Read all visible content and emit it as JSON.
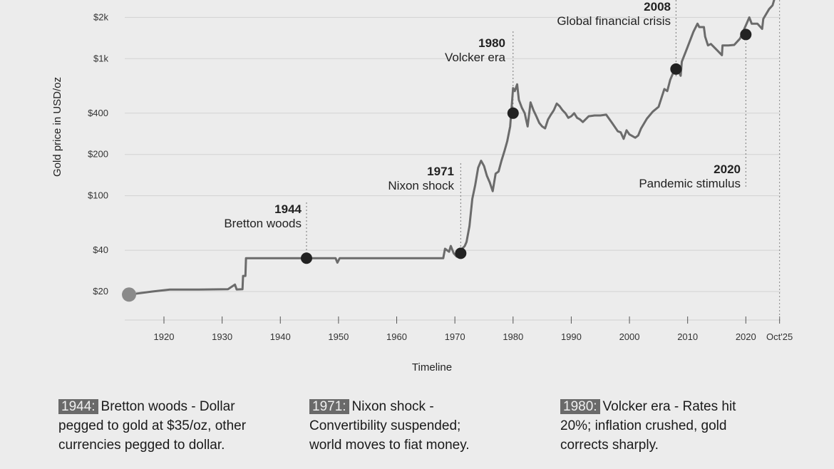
{
  "chart_data": {
    "type": "line",
    "title": "",
    "xlabel": "Timeline",
    "ylabel": "Gold price in USD/oz",
    "yscale": "log",
    "xlim": [
      1913,
      2026
    ],
    "ylim": [
      14,
      3000
    ],
    "grid": true,
    "xticks": [
      {
        "value": 1920,
        "label": "1920"
      },
      {
        "value": 1930,
        "label": "1930"
      },
      {
        "value": 1940,
        "label": "1940"
      },
      {
        "value": 1950,
        "label": "1950"
      },
      {
        "value": 1960,
        "label": "1960"
      },
      {
        "value": 1970,
        "label": "1970"
      },
      {
        "value": 1980,
        "label": "1980"
      },
      {
        "value": 1990,
        "label": "1990"
      },
      {
        "value": 2000,
        "label": "2000"
      },
      {
        "value": 2010,
        "label": "2010"
      },
      {
        "value": 2020,
        "label": "2020"
      },
      {
        "value": 2025.8,
        "label": "Oct'25"
      }
    ],
    "yticks": [
      {
        "value": 20,
        "label": "$20"
      },
      {
        "value": 40,
        "label": "$40"
      },
      {
        "value": 100,
        "label": "$100"
      },
      {
        "value": 200,
        "label": "$200"
      },
      {
        "value": 400,
        "label": "$400"
      },
      {
        "value": 1000,
        "label": "$1k"
      },
      {
        "value": 2000,
        "label": "$2k"
      }
    ],
    "series": [
      {
        "line_color": "#6b6b6b",
        "points": [
          [
            1914,
            19
          ],
          [
            1918,
            20
          ],
          [
            1921,
            20.67
          ],
          [
            1926,
            20.67
          ],
          [
            1931,
            20.8
          ],
          [
            1932.2,
            22.5
          ],
          [
            1932.5,
            20.7
          ],
          [
            1933.5,
            20.8
          ],
          [
            1933.6,
            26
          ],
          [
            1934,
            26
          ],
          [
            1934.1,
            35
          ],
          [
            1944.5,
            35
          ],
          [
            1949.5,
            35
          ],
          [
            1949.8,
            32.5
          ],
          [
            1950.2,
            35
          ],
          [
            1968,
            35
          ],
          [
            1968.3,
            41
          ],
          [
            1969,
            39
          ],
          [
            1969.3,
            43
          ],
          [
            1969.8,
            38
          ],
          [
            1970.3,
            36
          ],
          [
            1971,
            40
          ],
          [
            1971.7,
            43
          ],
          [
            1972,
            46
          ],
          [
            1972.5,
            60
          ],
          [
            1973,
            95
          ],
          [
            1973.5,
            120
          ],
          [
            1974,
            160
          ],
          [
            1974.5,
            180
          ],
          [
            1975,
            165
          ],
          [
            1975.5,
            140
          ],
          [
            1976,
            125
          ],
          [
            1976.5,
            108
          ],
          [
            1977,
            145
          ],
          [
            1977.5,
            150
          ],
          [
            1978,
            180
          ],
          [
            1978.5,
            210
          ],
          [
            1979,
            250
          ],
          [
            1979.5,
            320
          ],
          [
            1980,
            610
          ],
          [
            1980.3,
            580
          ],
          [
            1980.7,
            650
          ],
          [
            1981,
            500
          ],
          [
            1981.5,
            440
          ],
          [
            1982,
            400
          ],
          [
            1982.5,
            320
          ],
          [
            1983,
            480
          ],
          [
            1983.5,
            420
          ],
          [
            1984,
            380
          ],
          [
            1984.5,
            340
          ],
          [
            1985,
            320
          ],
          [
            1985.5,
            310
          ],
          [
            1986,
            360
          ],
          [
            1986.5,
            390
          ],
          [
            1987,
            420
          ],
          [
            1987.5,
            470
          ],
          [
            1988,
            450
          ],
          [
            1988.5,
            420
          ],
          [
            1989,
            400
          ],
          [
            1989.5,
            370
          ],
          [
            1990,
            380
          ],
          [
            1990.5,
            400
          ],
          [
            1991,
            370
          ],
          [
            1991.5,
            360
          ],
          [
            1992,
            345
          ],
          [
            1993,
            380
          ],
          [
            1994,
            385
          ],
          [
            1995,
            385
          ],
          [
            1996,
            390
          ],
          [
            1997,
            340
          ],
          [
            1998,
            295
          ],
          [
            1998.5,
            290
          ],
          [
            1999,
            260
          ],
          [
            1999.5,
            300
          ],
          [
            2000,
            280
          ],
          [
            2001,
            265
          ],
          [
            2001.5,
            275
          ],
          [
            2002,
            310
          ],
          [
            2003,
            365
          ],
          [
            2004,
            410
          ],
          [
            2005,
            445
          ],
          [
            2006,
            600
          ],
          [
            2006.5,
            580
          ],
          [
            2007,
            700
          ],
          [
            2008,
            880
          ],
          [
            2008.8,
            750
          ],
          [
            2009,
            950
          ],
          [
            2010,
            1220
          ],
          [
            2011,
            1570
          ],
          [
            2011.7,
            1800
          ],
          [
            2012,
            1700
          ],
          [
            2012.8,
            1700
          ],
          [
            2013,
            1450
          ],
          [
            2013.5,
            1250
          ],
          [
            2014,
            1280
          ],
          [
            2015,
            1160
          ],
          [
            2015.9,
            1060
          ],
          [
            2016,
            1250
          ],
          [
            2017,
            1250
          ],
          [
            2018,
            1260
          ],
          [
            2019,
            1400
          ],
          [
            2020,
            1750
          ],
          [
            2020.6,
            2000
          ],
          [
            2021,
            1800
          ],
          [
            2022,
            1800
          ],
          [
            2022.8,
            1650
          ],
          [
            2023,
            1950
          ],
          [
            2024,
            2300
          ],
          [
            2024.6,
            2450
          ],
          [
            2025,
            2800
          ],
          [
            2025.3,
            3000
          ]
        ]
      }
    ],
    "start_marker": [
      1914,
      19
    ],
    "events": [
      {
        "year": "1944",
        "label": "Bretton woods",
        "x": 1944.5,
        "y": 35,
        "align": "end"
      },
      {
        "year": "1971",
        "label": "Nixon shock",
        "x": 1971,
        "y": 38,
        "align": "end"
      },
      {
        "year": "1980",
        "label": "Volcker era",
        "x": 1980,
        "y": 400,
        "align": "end"
      },
      {
        "year": "2008",
        "label": "Global financial crisis",
        "x": 2008,
        "y": 840,
        "align": "end"
      },
      {
        "year": "2020",
        "label": "Pandemic stimulus",
        "x": 2020,
        "y": 1500,
        "align": "end"
      }
    ]
  },
  "notes": [
    {
      "tag": "1944:",
      "line1": "Bretton woods - Dollar",
      "line2": "pegged to gold at $35/oz, other",
      "line3": "currencies pegged to dollar."
    },
    {
      "tag": "1971:",
      "line1": "Nixon shock -",
      "line2": "Convertibility suspended;",
      "line3": "world moves to fiat money."
    },
    {
      "tag": "1980:",
      "line1": "Volcker era - Rates hit",
      "line2": "20%; inflation crushed, gold",
      "line3": "corrects sharply."
    }
  ]
}
